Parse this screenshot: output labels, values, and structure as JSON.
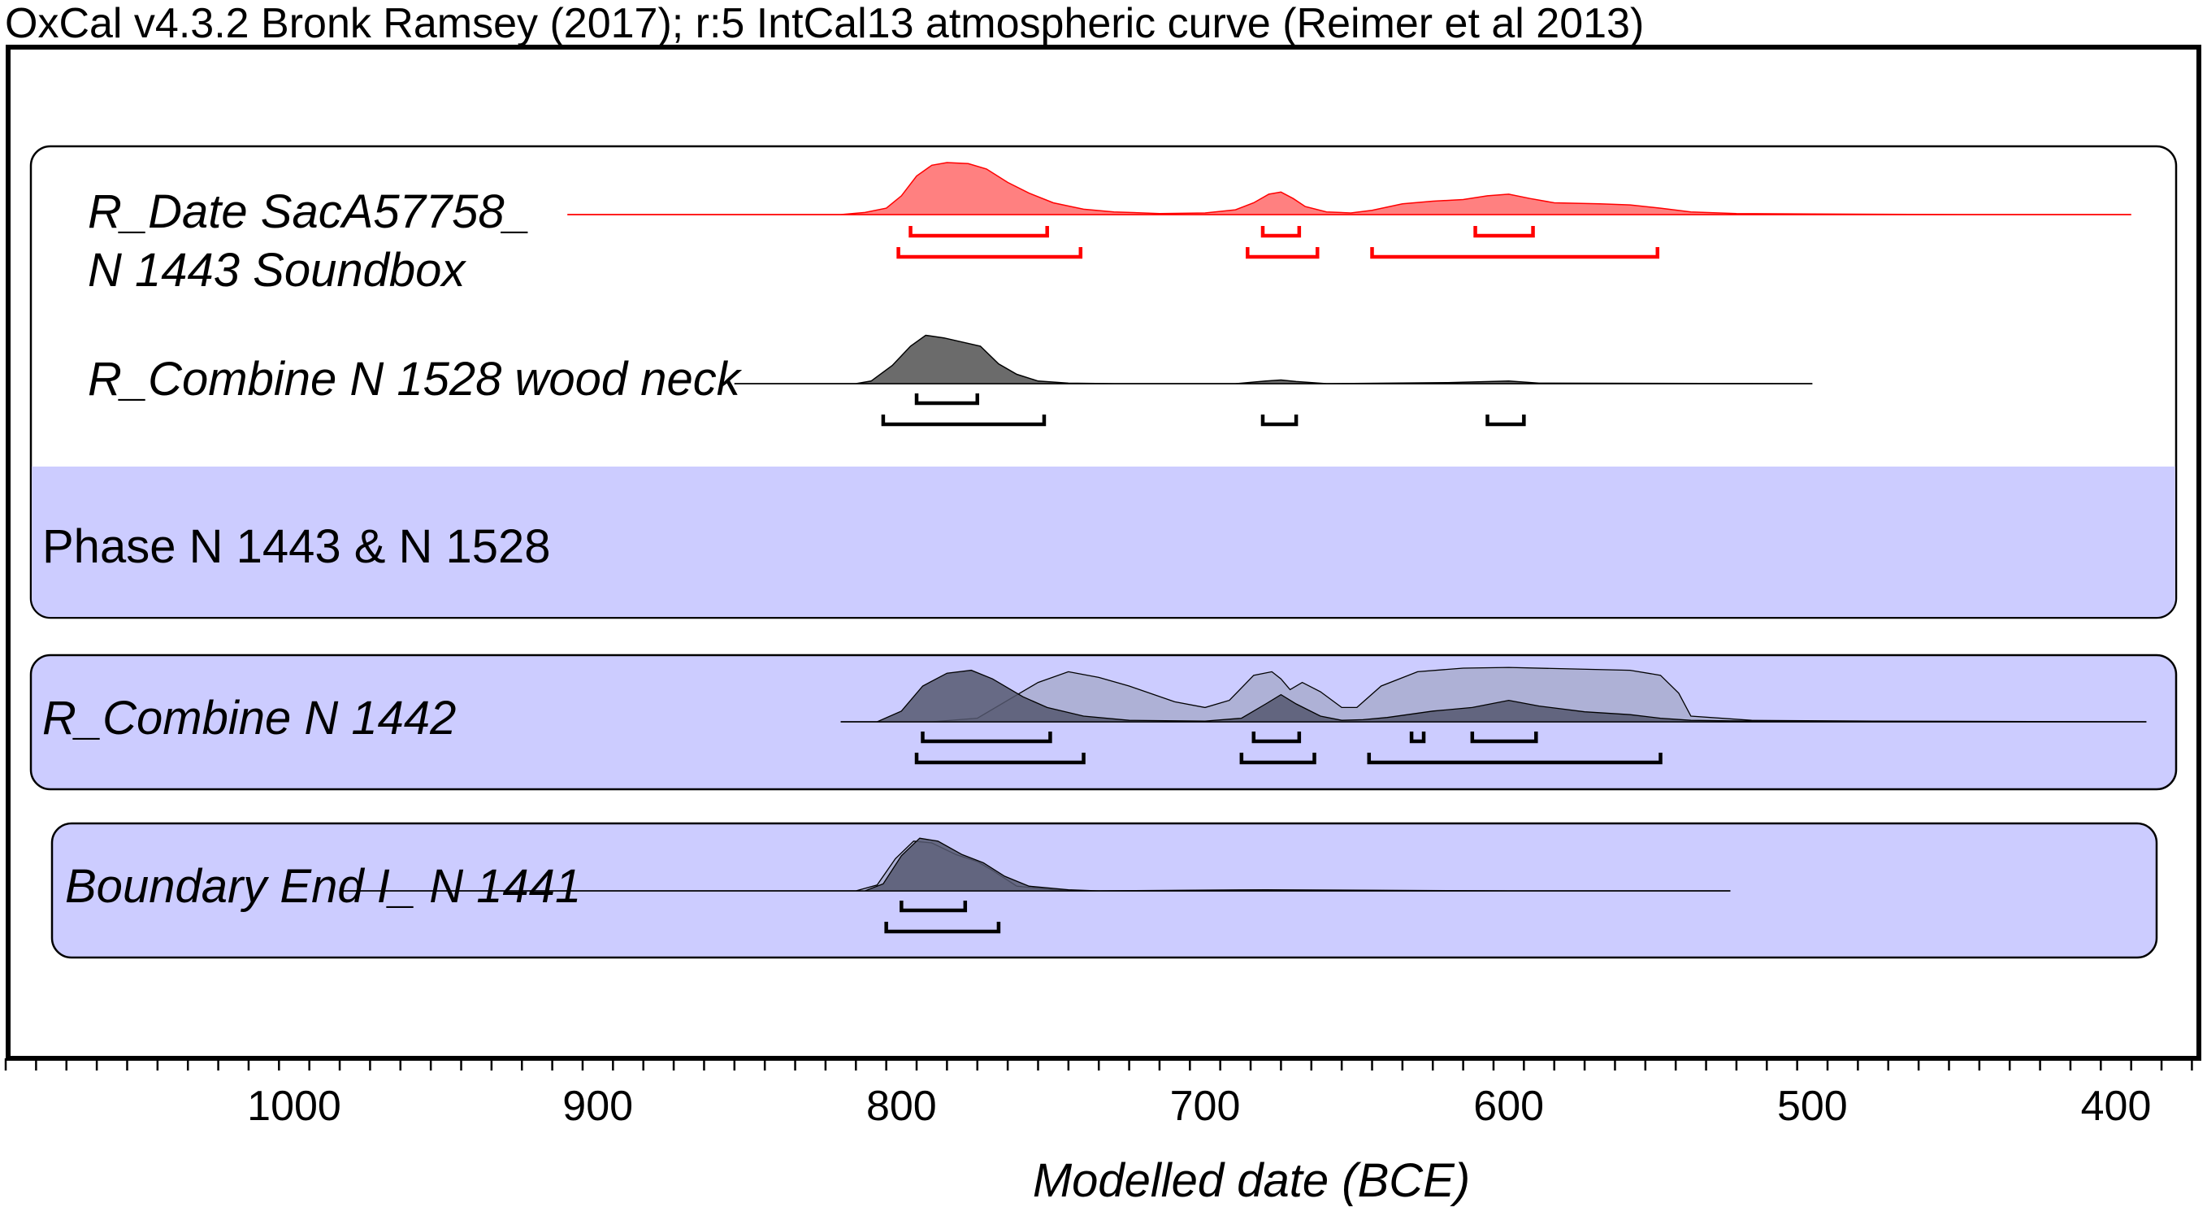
{
  "chart_data": {
    "type": "area",
    "header": "OxCal v4.3.2 Bronk Ramsey (2017); r:5 IntCal13 atmospheric curve (Reimer et al 2013)",
    "xlabel": "Modelled date (BCE)",
    "xlim": [
      1095,
      375
    ],
    "x_reversed": true,
    "x_ticks": [
      1000,
      900,
      800,
      700,
      600,
      500,
      400
    ],
    "tick_labels": [
      "1000",
      "900",
      "800",
      "700",
      "600",
      "500",
      "400"
    ],
    "minor_tick_step": 10,
    "grid": false,
    "colors": {
      "red": "#ff0000",
      "red_fill": "#ff8080",
      "dark_fill": "#6b6b6b",
      "posterior_fill": "#555870",
      "prior_fill": "#aeb1d6",
      "phase_bg": "#ccccff"
    },
    "panels": [
      {
        "id": "phase",
        "label": "Phase N 1443 & N 1528",
        "items": [
          {
            "label_line1": "R_Date SacA57758_",
            "label_line2": "N 1443 Soundbox",
            "style": "red",
            "range": [
              910,
              395
            ],
            "points": [
              [
                910,
                0
              ],
              [
                820,
                0
              ],
              [
                812,
                0.04
              ],
              [
                805,
                0.12
              ],
              [
                800,
                0.35
              ],
              [
                795,
                0.72
              ],
              [
                790,
                0.92
              ],
              [
                785,
                0.97
              ],
              [
                778,
                0.95
              ],
              [
                772,
                0.85
              ],
              [
                765,
                0.6
              ],
              [
                758,
                0.4
              ],
              [
                750,
                0.22
              ],
              [
                740,
                0.1
              ],
              [
                730,
                0.05
              ],
              [
                715,
                0.02
              ],
              [
                700,
                0.03
              ],
              [
                690,
                0.09
              ],
              [
                684,
                0.22
              ],
              [
                679,
                0.38
              ],
              [
                675,
                0.42
              ],
              [
                671,
                0.3
              ],
              [
                667,
                0.15
              ],
              [
                660,
                0.05
              ],
              [
                652,
                0.03
              ],
              [
                645,
                0.08
              ],
              [
                635,
                0.2
              ],
              [
                625,
                0.25
              ],
              [
                615,
                0.28
              ],
              [
                607,
                0.35
              ],
              [
                600,
                0.38
              ],
              [
                593,
                0.3
              ],
              [
                585,
                0.22
              ],
              [
                570,
                0.2
              ],
              [
                560,
                0.18
              ],
              [
                550,
                0.12
              ],
              [
                540,
                0.05
              ],
              [
                525,
                0.02
              ],
              [
                500,
                0.01
              ],
              [
                450,
                0
              ],
              [
                395,
                0
              ]
            ],
            "brackets_1sigma": [
              [
                797,
                752
              ],
              [
                681,
                669
              ],
              [
                611,
                592
              ]
            ],
            "brackets_2sigma": [
              [
                801,
                741
              ],
              [
                686,
                663
              ],
              [
                645,
                551
              ]
            ]
          },
          {
            "label": "R_Combine N 1528 wood neck",
            "style": "dark",
            "range": [
              855,
              500
            ],
            "points": [
              [
                855,
                0
              ],
              [
                815,
                0
              ],
              [
                810,
                0.05
              ],
              [
                803,
                0.35
              ],
              [
                797,
                0.72
              ],
              [
                792,
                0.93
              ],
              [
                786,
                0.88
              ],
              [
                780,
                0.8
              ],
              [
                774,
                0.72
              ],
              [
                768,
                0.38
              ],
              [
                762,
                0.18
              ],
              [
                755,
                0.05
              ],
              [
                745,
                0.01
              ],
              [
                730,
                0
              ],
              [
                690,
                0
              ],
              [
                680,
                0.05
              ],
              [
                675,
                0.07
              ],
              [
                670,
                0.04
              ],
              [
                660,
                0
              ],
              [
                620,
                0.02
              ],
              [
                600,
                0.05
              ],
              [
                590,
                0.01
              ],
              [
                500,
                0
              ]
            ],
            "brackets_1sigma": [
              [
                795,
                775
              ]
            ],
            "brackets_2sigma": [
              [
                806,
                753
              ],
              [
                681,
                670
              ],
              [
                607,
                595
              ]
            ]
          }
        ]
      },
      {
        "id": "combine",
        "items": [
          {
            "label": "R_Combine N 1442",
            "style": "light-dark",
            "range": [
              820,
              390
            ],
            "prior_points": [
              [
                820,
                0
              ],
              [
                790,
                0
              ],
              [
                775,
                0.05
              ],
              [
                765,
                0.3
              ],
              [
                755,
                0.55
              ],
              [
                745,
                0.7
              ],
              [
                735,
                0.62
              ],
              [
                725,
                0.5
              ],
              [
                710,
                0.28
              ],
              [
                700,
                0.2
              ],
              [
                692,
                0.3
              ],
              [
                684,
                0.65
              ],
              [
                678,
                0.7
              ],
              [
                675,
                0.6
              ],
              [
                672,
                0.45
              ],
              [
                668,
                0.55
              ],
              [
                662,
                0.42
              ],
              [
                655,
                0.2
              ],
              [
                650,
                0.2
              ],
              [
                642,
                0.5
              ],
              [
                630,
                0.7
              ],
              [
                615,
                0.75
              ],
              [
                600,
                0.76
              ],
              [
                580,
                0.74
              ],
              [
                560,
                0.72
              ],
              [
                550,
                0.65
              ],
              [
                544,
                0.4
              ],
              [
                540,
                0.08
              ],
              [
                520,
                0.02
              ],
              [
                480,
                0.01
              ],
              [
                390,
                0
              ]
            ],
            "posterior_points": [
              [
                820,
                0
              ],
              [
                808,
                0
              ],
              [
                800,
                0.15
              ],
              [
                793,
                0.5
              ],
              [
                785,
                0.68
              ],
              [
                777,
                0.72
              ],
              [
                770,
                0.6
              ],
              [
                760,
                0.35
              ],
              [
                752,
                0.2
              ],
              [
                740,
                0.08
              ],
              [
                725,
                0.02
              ],
              [
                700,
                0.01
              ],
              [
                688,
                0.05
              ],
              [
                680,
                0.25
              ],
              [
                675,
                0.38
              ],
              [
                670,
                0.25
              ],
              [
                662,
                0.08
              ],
              [
                655,
                0.02
              ],
              [
                648,
                0.03
              ],
              [
                640,
                0.06
              ],
              [
                625,
                0.15
              ],
              [
                612,
                0.2
              ],
              [
                600,
                0.3
              ],
              [
                590,
                0.22
              ],
              [
                575,
                0.14
              ],
              [
                560,
                0.1
              ],
              [
                550,
                0.05
              ],
              [
                540,
                0.02
              ],
              [
                520,
                0.01
              ],
              [
                460,
                0
              ],
              [
                390,
                0
              ]
            ],
            "brackets_1sigma": [
              [
                793,
                751
              ],
              [
                684,
                669
              ],
              [
                632,
                628
              ],
              [
                612,
                591
              ]
            ],
            "brackets_2sigma": [
              [
                795,
                740
              ],
              [
                688,
                664
              ],
              [
                646,
                550
              ]
            ]
          }
        ]
      },
      {
        "id": "boundary",
        "items": [
          {
            "label": "Boundary End I_ N 1441",
            "style": "light-dark",
            "range": [
              985,
              527
            ],
            "prior_points": [
              [
                985,
                0
              ],
              [
                815,
                0
              ],
              [
                808,
                0.1
              ],
              [
                802,
                0.55
              ],
              [
                796,
                0.85
              ],
              [
                790,
                0.82
              ],
              [
                782,
                0.62
              ],
              [
                775,
                0.5
              ],
              [
                770,
                0.35
              ],
              [
                762,
                0.08
              ],
              [
                750,
                0.02
              ],
              [
                740,
                0
              ],
              [
                680,
                0.01
              ],
              [
                600,
                0
              ],
              [
                527,
                0
              ]
            ],
            "posterior_points": [
              [
                985,
                0
              ],
              [
                812,
                0
              ],
              [
                806,
                0.12
              ],
              [
                800,
                0.6
              ],
              [
                794,
                0.9
              ],
              [
                788,
                0.85
              ],
              [
                780,
                0.62
              ],
              [
                773,
                0.48
              ],
              [
                766,
                0.25
              ],
              [
                758,
                0.08
              ],
              [
                745,
                0.02
              ],
              [
                735,
                0
              ],
              [
                680,
                0.02
              ],
              [
                600,
                0
              ],
              [
                527,
                0
              ]
            ],
            "brackets_1sigma": [
              [
                800,
                779
              ]
            ],
            "brackets_2sigma": [
              [
                805,
                768
              ]
            ]
          }
        ]
      }
    ]
  }
}
